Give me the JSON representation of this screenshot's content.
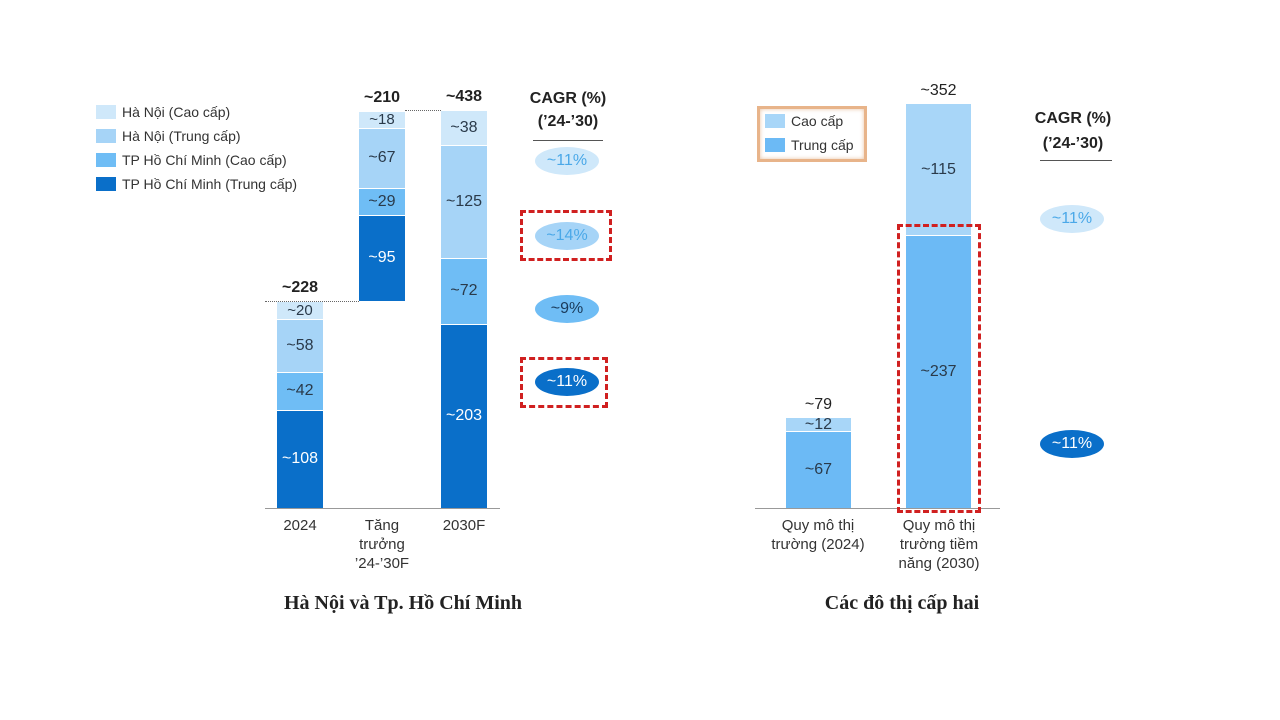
{
  "colors": {
    "hn_cao": "#cfe8fa",
    "hn_trung": "#a6d4f7",
    "hcm_cao": "#6fbdf5",
    "hcm_trung": "#0a6fc9",
    "cao": "#a8d6f8",
    "trung": "#6cbaf5",
    "highlight": "#d02020"
  },
  "chart_data": [
    {
      "type": "bar",
      "subtype": "stacked-waterfall",
      "title": "Hà Nội và Tp. Hồ Chí Minh",
      "categories": [
        "2024",
        "Tăng trưởng ’24-’30F",
        "2030F"
      ],
      "legend": [
        "Hà Nội (Cao cấp)",
        "Hà Nội (Trung cấp)",
        "TP Hồ Chí Minh (Cao cấp)",
        "TP Hồ Chí Minh (Trung cấp)"
      ],
      "series": [
        {
          "name": "TP Hồ Chí Minh (Trung cấp)",
          "values": [
            108,
            95,
            203
          ],
          "labels": [
            "~108",
            "~95",
            "~203"
          ]
        },
        {
          "name": "TP Hồ Chí Minh (Cao cấp)",
          "values": [
            42,
            29,
            72
          ],
          "labels": [
            "~42",
            "~29",
            "~72"
          ]
        },
        {
          "name": "Hà Nội (Trung cấp)",
          "values": [
            58,
            67,
            125
          ],
          "labels": [
            "~58",
            "~67",
            "~125"
          ]
        },
        {
          "name": "Hà Nội (Cao cấp)",
          "values": [
            20,
            18,
            38
          ],
          "labels": [
            "~20",
            "~18",
            "~38"
          ]
        }
      ],
      "totals": [
        "~228",
        "~210",
        "~438"
      ],
      "totals_values": [
        228,
        210,
        438
      ],
      "cagr_header": [
        "CAGR (%)",
        "(’24-’30)"
      ],
      "cagr": [
        "~11%",
        "~14%",
        "~9%",
        "~11%"
      ],
      "highlighted_cagr": [
        "~14%",
        "~11%"
      ]
    },
    {
      "type": "bar",
      "subtype": "stacked",
      "title": "Các đô thị cấp hai",
      "categories": [
        "Quy mô thị trường (2024)",
        "Quy mô thị trường tiềm năng (2030)"
      ],
      "legend": [
        "Cao cấp",
        "Trung cấp"
      ],
      "series": [
        {
          "name": "Trung cấp",
          "values": [
            67,
            237
          ],
          "labels": [
            "~67",
            "~237"
          ]
        },
        {
          "name": "Cao cấp",
          "values": [
            12,
            115
          ],
          "labels": [
            "~12",
            "~115"
          ]
        }
      ],
      "totals": [
        "~79",
        "~352"
      ],
      "totals_values": [
        79,
        352
      ],
      "cagr_header": [
        "CAGR (%)",
        "(’24-’30)"
      ],
      "cagr": [
        "~11%",
        "~11%"
      ],
      "highlighted": "Trung cấp 2030"
    }
  ]
}
